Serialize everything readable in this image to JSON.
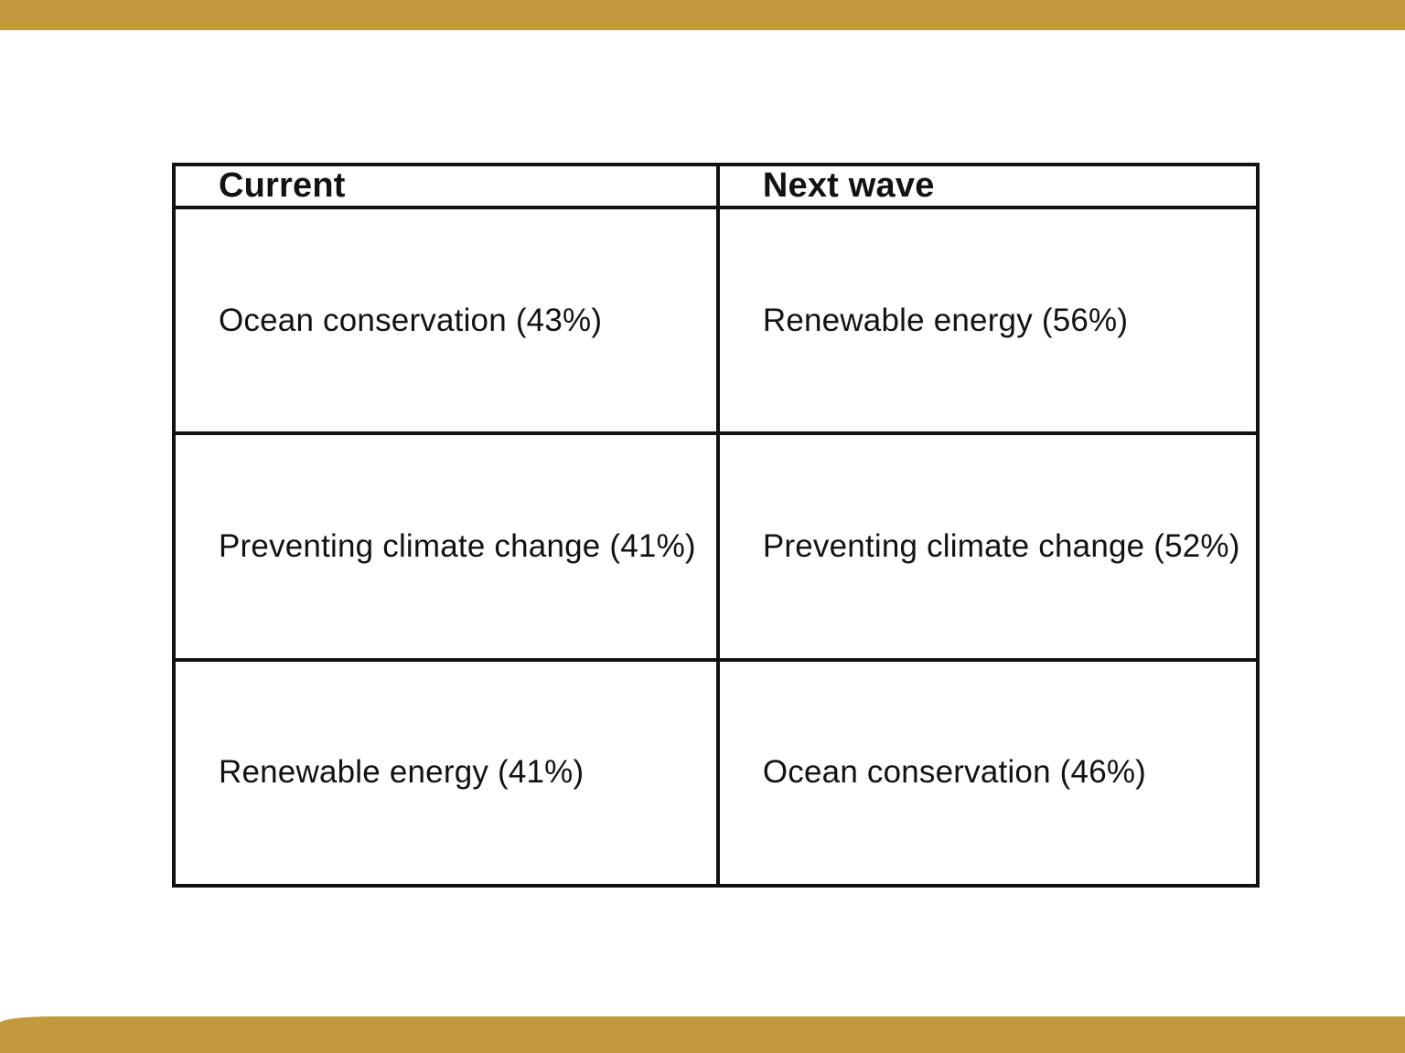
{
  "slide": {
    "accent_color": "#C19A3E",
    "background_color": "#FFFFFF",
    "text_color": "#121212"
  },
  "table": {
    "headers": [
      "Current",
      "Next wave"
    ],
    "rows": [
      {
        "current": "Ocean conservation (43%)",
        "next_wave": "Renewable energy (56%)"
      },
      {
        "current": "Preventing climate change (41%)",
        "next_wave": "Preventing climate change (52%)"
      },
      {
        "current": "Renewable energy (41%)",
        "next_wave": "Ocean conservation (46%)"
      }
    ]
  }
}
